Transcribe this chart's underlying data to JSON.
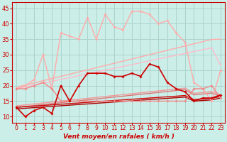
{
  "background_color": "#cceee8",
  "grid_color": "#aad4cc",
  "line_color_dark": "#cc0000",
  "xlabel": "Vent moyen/en rafales ( km/h )",
  "xlim": [
    -0.5,
    23.5
  ],
  "ylim": [
    8,
    47
  ],
  "yticks": [
    10,
    15,
    20,
    25,
    30,
    35,
    40,
    45
  ],
  "xticks": [
    0,
    1,
    2,
    3,
    4,
    5,
    6,
    7,
    8,
    9,
    10,
    11,
    12,
    13,
    14,
    15,
    16,
    17,
    18,
    19,
    20,
    21,
    22,
    23
  ],
  "series": [
    {
      "x": [
        0,
        1,
        2,
        3,
        4,
        5,
        6,
        7,
        8,
        9,
        10,
        11,
        12,
        13,
        14,
        15,
        16,
        17,
        18,
        19,
        20,
        21,
        22,
        23
      ],
      "y": [
        19,
        20,
        22,
        30,
        19,
        37,
        36,
        35,
        42,
        35,
        43,
        39,
        38,
        44,
        44,
        43,
        40,
        41,
        37,
        34,
        21,
        19,
        15,
        25
      ],
      "color": "#ffaaaa",
      "lw": 1.0,
      "marker": "D",
      "ms": 2.0,
      "zorder": 3
    },
    {
      "x": [
        0,
        1,
        2,
        3,
        4,
        5,
        6,
        7,
        8,
        9,
        10,
        11,
        12,
        13,
        14,
        15,
        16,
        17,
        18,
        19,
        20,
        21,
        22,
        23
      ],
      "y": [
        19.5,
        20.2,
        20.9,
        21.6,
        22.3,
        23.0,
        23.7,
        24.4,
        25.1,
        25.8,
        26.5,
        27.2,
        27.9,
        28.6,
        29.3,
        30.0,
        30.7,
        31.4,
        32.1,
        32.8,
        33.5,
        34.2,
        34.9,
        35.0
      ],
      "color": "#ffaaaa",
      "lw": 1.0,
      "marker": null,
      "ms": 0,
      "zorder": 2
    },
    {
      "x": [
        0,
        1,
        2,
        3,
        4,
        5,
        6,
        7,
        8,
        9,
        10,
        11,
        12,
        13,
        14,
        15,
        16,
        17,
        18,
        19,
        20,
        21,
        22,
        23
      ],
      "y": [
        19.0,
        19.6,
        20.2,
        20.8,
        21.4,
        22.0,
        22.6,
        23.2,
        23.8,
        24.4,
        25.0,
        25.6,
        26.2,
        26.8,
        27.4,
        28.0,
        28.6,
        29.2,
        29.8,
        30.4,
        31.0,
        31.6,
        32.2,
        26.5
      ],
      "color": "#ffbbcc",
      "lw": 1.0,
      "marker": null,
      "ms": 0,
      "zorder": 2
    },
    {
      "x": [
        0,
        1,
        2,
        3,
        4,
        5,
        6,
        7,
        8,
        9,
        10,
        11,
        12,
        13,
        14,
        15,
        16,
        17,
        18,
        19,
        20,
        21,
        22,
        23
      ],
      "y": [
        19,
        19,
        20,
        21,
        19,
        15,
        15,
        15,
        15,
        15,
        15,
        15,
        15,
        15,
        15,
        15,
        15,
        15,
        15,
        15,
        19,
        19,
        20,
        16
      ],
      "color": "#ee8888",
      "lw": 1.0,
      "marker": "D",
      "ms": 2.0,
      "zorder": 4
    },
    {
      "x": [
        0,
        1,
        2,
        3,
        4,
        5,
        6,
        7,
        8,
        9,
        10,
        11,
        12,
        13,
        14,
        15,
        16,
        17,
        18,
        19,
        20,
        21,
        22,
        23
      ],
      "y": [
        13.5,
        13.8,
        14.1,
        14.4,
        14.7,
        15.0,
        15.3,
        15.6,
        15.9,
        16.2,
        16.5,
        16.8,
        17.1,
        17.4,
        17.7,
        18.0,
        18.3,
        18.6,
        18.9,
        19.2,
        17.5,
        17.8,
        18.1,
        17.0
      ],
      "color": "#ee9999",
      "lw": 1.0,
      "marker": null,
      "ms": 0,
      "zorder": 2
    },
    {
      "x": [
        0,
        1,
        2,
        3,
        4,
        5,
        6,
        7,
        8,
        9,
        10,
        11,
        12,
        13,
        14,
        15,
        16,
        17,
        18,
        19,
        20,
        21,
        22,
        23
      ],
      "y": [
        13.0,
        13.3,
        13.6,
        13.9,
        14.2,
        14.5,
        14.8,
        15.1,
        15.4,
        15.7,
        16.0,
        16.3,
        16.6,
        16.9,
        17.2,
        17.5,
        17.8,
        18.1,
        18.4,
        18.7,
        17.0,
        17.3,
        17.6,
        16.5
      ],
      "color": "#dd7777",
      "lw": 1.0,
      "marker": null,
      "ms": 0,
      "zorder": 2
    },
    {
      "x": [
        0,
        1,
        2,
        3,
        4,
        5,
        6,
        7,
        8,
        9,
        10,
        11,
        12,
        13,
        14,
        15,
        16,
        17,
        18,
        19,
        20,
        21,
        22,
        23
      ],
      "y": [
        13,
        10,
        12,
        13,
        11,
        20,
        15,
        20,
        24,
        24,
        24,
        23,
        23,
        24,
        23,
        27,
        26,
        21,
        19,
        18,
        15,
        16,
        16,
        17
      ],
      "color": "#cc0000",
      "lw": 1.2,
      "marker": "D",
      "ms": 2.0,
      "zorder": 5
    },
    {
      "x": [
        0,
        1,
        2,
        3,
        4,
        5,
        6,
        7,
        8,
        9,
        10,
        11,
        12,
        13,
        14,
        15,
        16,
        17,
        18,
        19,
        20,
        21,
        22,
        23
      ],
      "y": [
        13.0,
        13.2,
        13.4,
        13.6,
        13.8,
        14.0,
        14.2,
        14.4,
        14.6,
        14.8,
        15.0,
        15.2,
        15.4,
        15.6,
        15.8,
        16.0,
        16.2,
        16.4,
        16.6,
        16.8,
        15.5,
        15.7,
        15.9,
        16.5
      ],
      "color": "#cc0000",
      "lw": 1.0,
      "marker": null,
      "ms": 0,
      "zorder": 2
    },
    {
      "x": [
        0,
        1,
        2,
        3,
        4,
        5,
        6,
        7,
        8,
        9,
        10,
        11,
        12,
        13,
        14,
        15,
        16,
        17,
        18,
        19,
        20,
        21,
        22,
        23
      ],
      "y": [
        12.5,
        12.7,
        12.9,
        13.1,
        13.3,
        13.5,
        13.7,
        13.9,
        14.1,
        14.3,
        14.5,
        14.7,
        14.9,
        15.1,
        15.3,
        15.5,
        15.7,
        15.9,
        16.1,
        16.3,
        15.0,
        15.2,
        15.4,
        16.0
      ],
      "color": "#aa0000",
      "lw": 1.0,
      "marker": null,
      "ms": 0,
      "zorder": 2
    }
  ]
}
